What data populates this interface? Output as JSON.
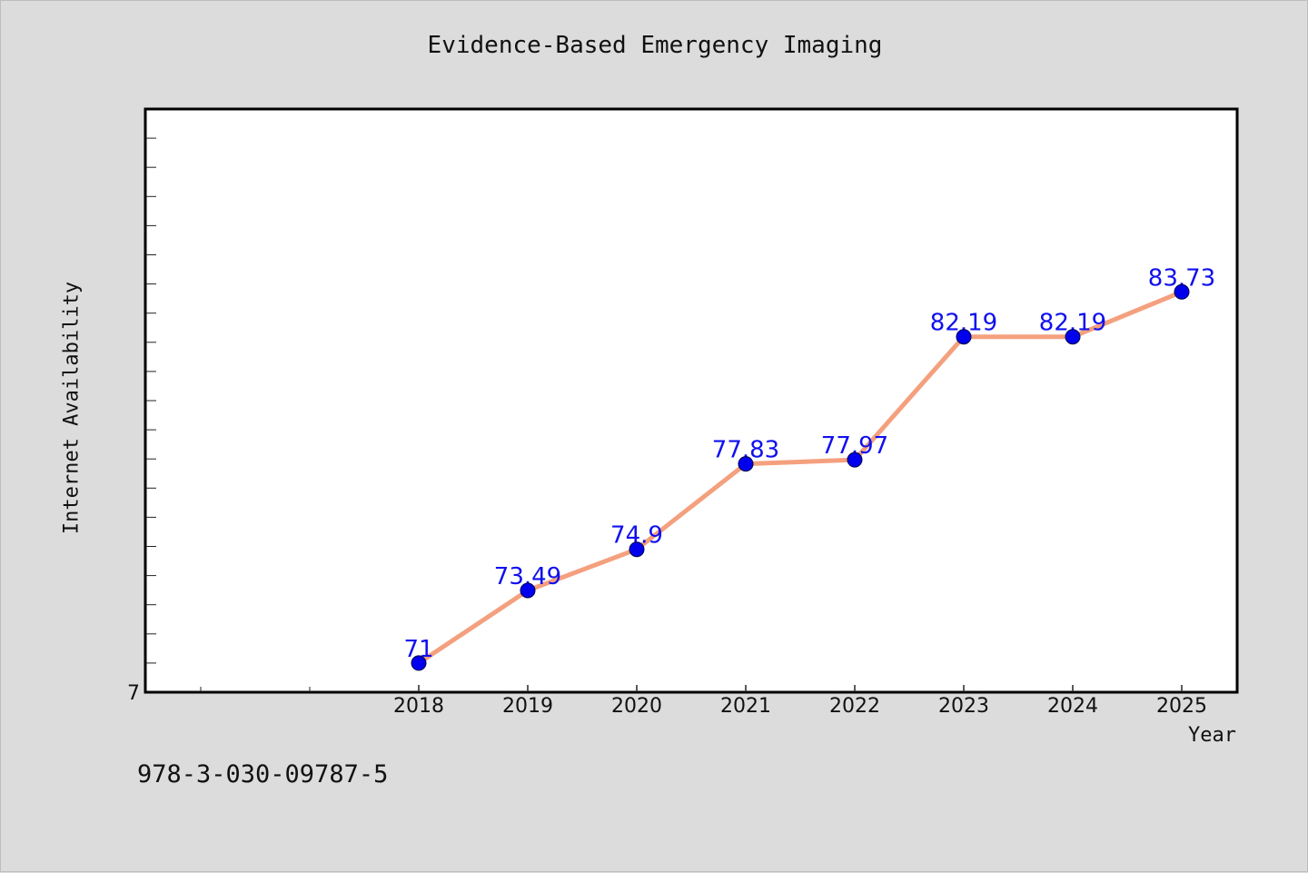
{
  "chart_data": {
    "type": "line",
    "title": "Evidence-Based Emergency Imaging",
    "xlabel": "Year",
    "ylabel": "Internet Availability",
    "x": [
      "2018",
      "2019",
      "2020",
      "2021",
      "2022",
      "2023",
      "2024",
      "2025"
    ],
    "series": [
      {
        "values": [
          71,
          73.49,
          74.9,
          77.83,
          77.97,
          82.19,
          82.19,
          83.73
        ],
        "labels": [
          "71",
          "73.49",
          "74.9",
          "77.83",
          "77.97",
          "82.19",
          "82.19",
          "83.73"
        ]
      }
    ],
    "ylim": [
      70,
      90
    ],
    "y_tick_label": "7",
    "grid": false,
    "legend": "none",
    "colors": {
      "line": "#f4a07e",
      "marker": "#0000ee",
      "label": "#1010ee",
      "background": "#dcdcdc",
      "plot_bg": "#ffffff"
    }
  },
  "footer": {
    "isbn": "978-3-030-09787-5"
  }
}
